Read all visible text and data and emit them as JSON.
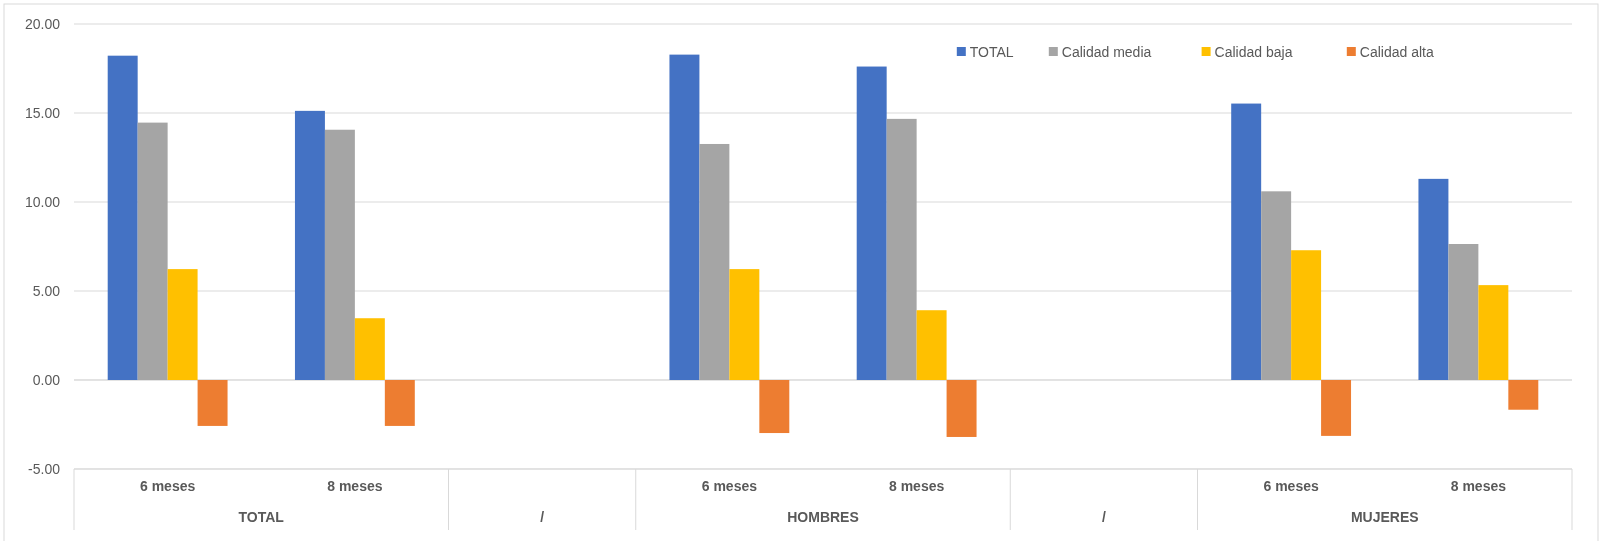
{
  "chart_data": {
    "type": "bar",
    "categories": [
      "6 meses",
      "8 meses",
      null,
      "6 meses",
      "8 meses",
      null,
      "6 meses",
      "8 meses"
    ],
    "series": [
      {
        "name": "TOTAL",
        "color": "#4472c4",
        "values": [
          18.22,
          15.12,
          null,
          18.28,
          17.61,
          null,
          15.53,
          11.3
        ]
      },
      {
        "name": "Calidad media",
        "color": "#a5a5a5",
        "values": [
          14.46,
          14.06,
          null,
          13.26,
          14.67,
          null,
          10.6,
          7.64
        ]
      },
      {
        "name": "Calidad baja",
        "color": "#ffc000",
        "values": [
          6.23,
          3.47,
          null,
          6.23,
          3.92,
          null,
          7.29,
          5.33
        ]
      },
      {
        "name": "Calidad alta",
        "color": "#ed7d31",
        "values": [
          -2.58,
          -2.58,
          null,
          -2.98,
          -3.2,
          null,
          -3.14,
          -1.67
        ]
      }
    ],
    "annotations": [
      "TOTAL",
      "/",
      "HOMBRES",
      "/",
      "MUJERES"
    ],
    "ylim": [
      -5,
      20
    ],
    "yticks": [
      {
        "value": -5,
        "label": "-5.00"
      },
      {
        "value": 0,
        "label": "0.00"
      },
      {
        "value": 5,
        "label": "5.00"
      },
      {
        "value": 10,
        "label": "10.00"
      },
      {
        "value": 15,
        "label": "15.00"
      },
      {
        "value": 20,
        "label": "20.00"
      }
    ],
    "grid": "y",
    "legend": "top right"
  }
}
